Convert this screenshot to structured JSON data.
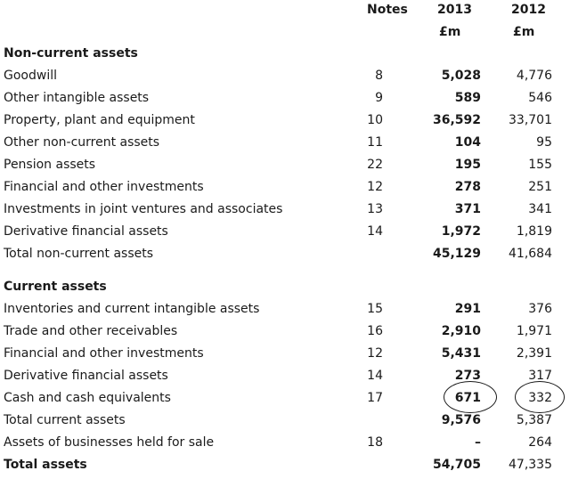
{
  "header": {
    "notes": "Notes",
    "year_2013": "2013",
    "year_2012": "2012",
    "unit_2013": "£m",
    "unit_2012": "£m"
  },
  "sections": {
    "non_current_title": "Non-current assets",
    "current_title": "Current assets"
  },
  "rows": [
    {
      "label": "Goodwill",
      "note": "8",
      "v2013": "5,028",
      "v2012": "4,776"
    },
    {
      "label": "Other intangible assets",
      "note": "9",
      "v2013": "589",
      "v2012": "546"
    },
    {
      "label": "Property, plant and equipment",
      "note": "10",
      "v2013": "36,592",
      "v2012": "33,701"
    },
    {
      "label": "Other non-current assets",
      "note": "11",
      "v2013": "104",
      "v2012": "95"
    },
    {
      "label": "Pension assets",
      "note": "22",
      "v2013": "195",
      "v2012": "155"
    },
    {
      "label": "Financial and other investments",
      "note": "12",
      "v2013": "278",
      "v2012": "251"
    },
    {
      "label": "Investments in joint ventures and associates",
      "note": "13",
      "v2013": "371",
      "v2012": "341"
    },
    {
      "label": "Derivative financial assets",
      "note": "14",
      "v2013": "1,972",
      "v2012": "1,819"
    },
    {
      "label": "Total non-current assets",
      "note": "",
      "v2013": "45,129",
      "v2012": "41,684"
    },
    {
      "label": "Inventories and current intangible assets",
      "note": "15",
      "v2013": "291",
      "v2012": "376"
    },
    {
      "label": "Trade and other receivables",
      "note": "16",
      "v2013": "2,910",
      "v2012": "1,971"
    },
    {
      "label": "Financial and other investments",
      "note": "12",
      "v2013": "5,431",
      "v2012": "2,391"
    },
    {
      "label": "Derivative financial assets",
      "note": "14",
      "v2013": "273",
      "v2012": "317"
    },
    {
      "label": "Cash and cash equivalents",
      "note": "17",
      "v2013": "671",
      "v2012": "332"
    },
    {
      "label": "Total current assets",
      "note": "",
      "v2013": "9,576",
      "v2012": "5,387"
    },
    {
      "label": "Assets of businesses held for sale",
      "note": "18",
      "v2013": "–",
      "v2012": "264"
    },
    {
      "label": "Total assets",
      "note": "",
      "v2013": "54,705",
      "v2012": "47,335"
    }
  ]
}
